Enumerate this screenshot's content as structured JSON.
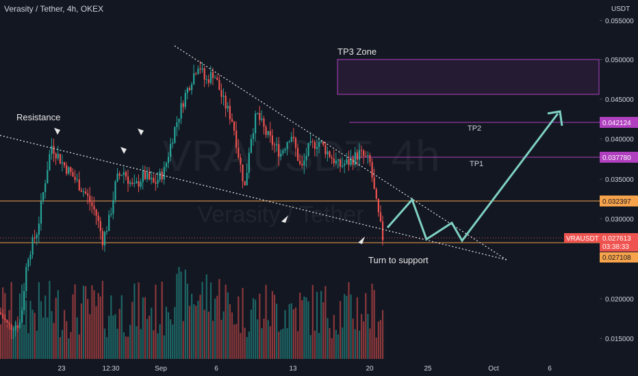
{
  "header": {
    "title": "Verasity / Tether, 4h, OKEX"
  },
  "watermark": {
    "big": "VRAUSDT, 4h",
    "small": "Verasity / Tether"
  },
  "colors": {
    "background": "#131722",
    "up": "#26a69a",
    "down": "#ef5350",
    "vol_up": "#26a69a",
    "vol_down": "#ef5350",
    "orange_line": "#f7a34b",
    "purple_line": "#b040c0",
    "projection": "#7fd1c4",
    "trend": "#e0e0e0"
  },
  "chart_data": {
    "type": "candlestick",
    "price_unit": "USDT",
    "y_ticks": [
      "0.055000",
      "0.050000",
      "0.045000",
      "0.040000",
      "0.035000",
      "0.030000",
      "0.020000",
      "0.015000"
    ],
    "x_ticks": [
      "23",
      "12:30",
      "Sep",
      "6",
      "13",
      "20",
      "25",
      "Oct",
      "6"
    ],
    "levels": [
      {
        "label": "0.042124",
        "value": 0.042124,
        "name": "TP2",
        "color": "#b040c0"
      },
      {
        "label": "0.037780",
        "value": 0.03778,
        "name": "TP1",
        "color": "#b040c0"
      },
      {
        "label": "0.032397",
        "value": 0.032397,
        "name": "",
        "color": "#f7a34b"
      },
      {
        "label": "0.027108",
        "value": 0.027108,
        "name": "",
        "color": "#f7a34b"
      }
    ],
    "tp3_zone": {
      "label": "TP3 Zone",
      "top": 0.05,
      "bottom": 0.0457
    },
    "current_price": {
      "symbol": "VRAUSDT",
      "value": "0.027613",
      "countdown": "03:38:33"
    },
    "annotations": [
      "Resistance",
      "Turn to support"
    ],
    "tp_labels": [
      "TP2",
      "TP1"
    ],
    "key_points": [
      {
        "time": "mid Aug",
        "price": 0.0215
      },
      {
        "time": "23",
        "price": 0.0385
      },
      {
        "time": "Sep 4-5",
        "price": 0.0498
      },
      {
        "time": "20",
        "price": 0.0276
      }
    ]
  }
}
